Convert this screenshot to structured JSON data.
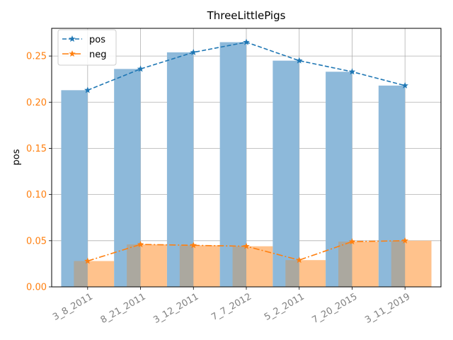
{
  "chart_data": {
    "type": "bar",
    "title": "ThreeLittlePigs",
    "xlabel": "",
    "ylabel": "pos",
    "categories": [
      "3_8_2011",
      "8_21_2011",
      "3_12_2011",
      "7_7_2012",
      "5_2_2011",
      "7_20_2015",
      "3_11_2019"
    ],
    "ylim": [
      0,
      0.28
    ],
    "yticks": [
      "0.00",
      "0.05",
      "0.10",
      "0.15",
      "0.20",
      "0.25"
    ],
    "grid": true,
    "legend_position": "top-left",
    "series": [
      {
        "name": "pos",
        "values": [
          0.213,
          0.236,
          0.254,
          0.265,
          0.245,
          0.233,
          0.218
        ],
        "bar_color": "#8db9da",
        "line_color": "#1f77b4",
        "line_style": "dashed",
        "marker": "star"
      },
      {
        "name": "neg",
        "values": [
          0.028,
          0.046,
          0.045,
          0.044,
          0.029,
          0.049,
          0.05
        ],
        "bar_color": "#ffbf86",
        "line_color": "#ff7f0e",
        "line_style": "dashdot",
        "marker": "star"
      }
    ],
    "tick_label_colors": {
      "y": "#ff7f0e",
      "x": "#808080"
    }
  }
}
